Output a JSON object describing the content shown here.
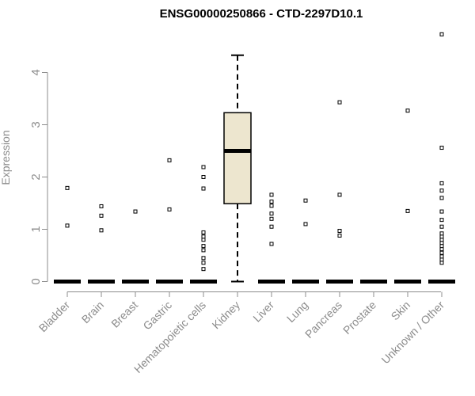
{
  "chart_data": {
    "type": "box",
    "title": "ENSG00000250866 - CTD-2297D10.1",
    "xlabel": "",
    "ylabel": "Expression",
    "ylim": [
      0,
      4.8
    ],
    "yticks": [
      0,
      1,
      2,
      3,
      4
    ],
    "categories": [
      "Bladder",
      "Brain",
      "Breast",
      "Gastric",
      "Hematopoietic cells",
      "Kidney",
      "Liver",
      "Lung",
      "Pancreas",
      "Prostate",
      "Skin",
      "Unknown / Other"
    ],
    "boxes": [
      {
        "category": "Bladder",
        "q1": 0,
        "median": 0,
        "q3": 0,
        "whisker_low": 0,
        "whisker_high": 0,
        "outliers": [
          1.07,
          1.79
        ]
      },
      {
        "category": "Brain",
        "q1": 0,
        "median": 0,
        "q3": 0,
        "whisker_low": 0,
        "whisker_high": 0,
        "outliers": [
          0.98,
          1.26,
          1.44
        ]
      },
      {
        "category": "Breast",
        "q1": 0,
        "median": 0,
        "q3": 0,
        "whisker_low": 0,
        "whisker_high": 0,
        "outliers": [
          1.34
        ]
      },
      {
        "category": "Gastric",
        "q1": 0,
        "median": 0,
        "q3": 0,
        "whisker_low": 0,
        "whisker_high": 0,
        "outliers": [
          1.38,
          2.32
        ]
      },
      {
        "category": "Hematopoietic cells",
        "q1": 0,
        "median": 0,
        "q3": 0,
        "whisker_low": 0,
        "whisker_high": 0,
        "outliers": [
          0.24,
          0.36,
          0.45,
          0.6,
          0.68,
          0.8,
          0.86,
          0.94,
          1.78,
          2.0,
          2.19
        ]
      },
      {
        "category": "Kidney",
        "q1": 1.49,
        "median": 2.5,
        "q3": 3.23,
        "whisker_low": 0,
        "whisker_high": 4.33,
        "outliers": []
      },
      {
        "category": "Liver",
        "q1": 0,
        "median": 0,
        "q3": 0,
        "whisker_low": 0,
        "whisker_high": 0,
        "outliers": [
          0.72,
          1.05,
          1.2,
          1.3,
          1.45,
          1.53,
          1.66
        ]
      },
      {
        "category": "Lung",
        "q1": 0,
        "median": 0,
        "q3": 0,
        "whisker_low": 0,
        "whisker_high": 0,
        "outliers": [
          1.1,
          1.55
        ]
      },
      {
        "category": "Pancreas",
        "q1": 0,
        "median": 0,
        "q3": 0,
        "whisker_low": 0,
        "whisker_high": 0,
        "outliers": [
          0.88,
          0.97,
          1.66,
          3.43
        ]
      },
      {
        "category": "Prostate",
        "q1": 0,
        "median": 0,
        "q3": 0,
        "whisker_low": 0,
        "whisker_high": 0,
        "outliers": []
      },
      {
        "category": "Skin",
        "q1": 0,
        "median": 0,
        "q3": 0,
        "whisker_low": 0,
        "whisker_high": 0,
        "outliers": [
          1.35,
          3.27
        ]
      },
      {
        "category": "Unknown / Other",
        "q1": 0,
        "median": 0,
        "q3": 0,
        "whisker_low": 0,
        "whisker_high": 0,
        "outliers": [
          0.36,
          0.42,
          0.48,
          0.55,
          0.62,
          0.68,
          0.74,
          0.8,
          0.86,
          0.92,
          1.05,
          1.18,
          1.34,
          1.6,
          1.74,
          1.88,
          2.56,
          4.73
        ]
      }
    ],
    "grid": false,
    "legend": "none",
    "box_fill": "#ede6cf",
    "colors": {
      "text": "#000000",
      "axis": "#8c8c8c"
    }
  }
}
